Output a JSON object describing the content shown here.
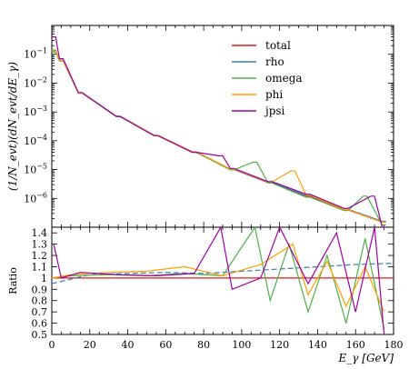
{
  "chart_data": [
    {
      "type": "line",
      "panel": "main",
      "ylabel": "(1/N_evt)(dN_evt/dE_γ)",
      "xlim": [
        0,
        180
      ],
      "ylim_log10": [
        -7,
        0
      ],
      "yscale": "log",
      "ytick_labels": [
        "10^-1",
        "10^-2",
        "10^-3",
        "10^-4",
        "10^-5",
        "10^-6"
      ],
      "legend_placement": "top-right",
      "bin_width": 2,
      "series": [
        {
          "name": "total",
          "color": "#e41a1c",
          "x": [
            1,
            5,
            15,
            35,
            55,
            75,
            95,
            115,
            135,
            155,
            175
          ],
          "y": [
            0.13,
            0.06,
            0.0045,
            0.0007,
            0.00015,
            4e-05,
            1e-05,
            3.5e-06,
            1.2e-06,
            4e-07,
            1.5e-07
          ]
        },
        {
          "name": "rho",
          "color": "#377eb8",
          "x": [
            1,
            5,
            15,
            35,
            55,
            75,
            95,
            115,
            135,
            155,
            175
          ],
          "y": [
            0.12,
            0.058,
            0.0044,
            0.00069,
            0.000148,
            3.95e-05,
            1.02e-05,
            3.6e-06,
            1.25e-06,
            4.2e-07,
            1.6e-07
          ]
        },
        {
          "name": "omega",
          "color": "#4daf4a",
          "x": [
            1,
            5,
            15,
            35,
            55,
            75,
            95,
            115,
            135,
            155,
            175,
            107,
            165
          ],
          "y": [
            0.14,
            0.062,
            0.0046,
            0.00071,
            0.000152,
            4.05e-05,
            9.8e-06,
            3.4e-06,
            1.1e-06,
            3.8e-07,
            1.2e-07,
            1.8e-05,
            1.2e-06
          ]
        },
        {
          "name": "phi",
          "color": "#ff9f00",
          "x": [
            1,
            5,
            15,
            35,
            55,
            75,
            95,
            115,
            135,
            155,
            175,
            127
          ],
          "y": [
            0.13,
            0.06,
            0.0045,
            0.00072,
            0.000155,
            4.2e-05,
            1.05e-05,
            3.7e-06,
            1.3e-06,
            4.1e-07,
            1.5e-07,
            9e-06
          ]
        },
        {
          "name": "jpsi",
          "color": "#a000a0",
          "x": [
            1,
            5,
            15,
            35,
            55,
            75,
            89,
            95,
            115,
            135,
            155,
            169,
            175
          ],
          "y": [
            0.4,
            0.07,
            0.0047,
            0.0007,
            0.00015,
            4e-05,
            3e-05,
            1.1e-05,
            3.8e-06,
            1.4e-06,
            4.5e-07,
            1.2e-06,
            1e-07
          ]
        }
      ]
    },
    {
      "type": "line",
      "panel": "ratio",
      "xlabel": "E_γ [GeV]",
      "ylabel": "Ratio",
      "xlim": [
        0,
        180
      ],
      "ylim": [
        0.5,
        1.45
      ],
      "xticks": [
        0,
        20,
        40,
        60,
        80,
        100,
        120,
        140,
        160,
        180
      ],
      "yticks": [
        0.5,
        0.6,
        0.7,
        0.8,
        0.9,
        1,
        1.1,
        1.2,
        1.3,
        1.4
      ],
      "series": [
        {
          "name": "total",
          "color": "#e41a1c",
          "x": [
            0,
            180
          ],
          "y": [
            1,
            1
          ]
        },
        {
          "name": "rho",
          "color": "#377eb8",
          "x": [
            0,
            20,
            40,
            60,
            80,
            100,
            120,
            140,
            160,
            180
          ],
          "y": [
            0.95,
            1.03,
            1.04,
            1.05,
            1.04,
            1.06,
            1.08,
            1.1,
            1.12,
            1.13
          ]
        },
        {
          "name": "omega",
          "color": "#4daf4a",
          "x": [
            0,
            10,
            30,
            50,
            70,
            90,
            107,
            115,
            125,
            135,
            145,
            155,
            165,
            175
          ],
          "y": [
            1.0,
            1.02,
            1.03,
            1.02,
            1.04,
            1.02,
            1.45,
            0.8,
            1.3,
            0.7,
            1.2,
            0.6,
            1.35,
            0.55
          ]
        },
        {
          "name": "phi",
          "color": "#ff9f00",
          "x": [
            0,
            10,
            30,
            50,
            70,
            90,
            110,
            127,
            135,
            145,
            155,
            165,
            175
          ],
          "y": [
            1.0,
            1.03,
            1.05,
            1.06,
            1.1,
            1.02,
            1.12,
            1.3,
            0.85,
            1.15,
            0.75,
            1.1,
            0.7
          ]
        },
        {
          "name": "jpsi",
          "color": "#a000a0",
          "x": [
            1,
            5,
            15,
            35,
            55,
            75,
            89,
            95,
            110,
            120,
            135,
            150,
            160,
            170,
            175
          ],
          "y": [
            1.3,
            1.0,
            1.05,
            1.03,
            1.02,
            1.04,
            1.45,
            0.9,
            1.0,
            1.45,
            0.95,
            1.4,
            0.7,
            1.45,
            0.5
          ]
        }
      ]
    }
  ],
  "legend": [
    {
      "label": "total",
      "color": "#e41a1c"
    },
    {
      "label": "rho",
      "color": "#377eb8"
    },
    {
      "label": "omega",
      "color": "#4daf4a"
    },
    {
      "label": "phi",
      "color": "#ff9f00"
    },
    {
      "label": "jpsi",
      "color": "#a000a0"
    }
  ],
  "labels": {
    "ylabel_main": "(1/N_evt)(dN_evt/dE_γ)",
    "ylabel_ratio": "Ratio",
    "xlabel": "E_γ [GeV]"
  }
}
